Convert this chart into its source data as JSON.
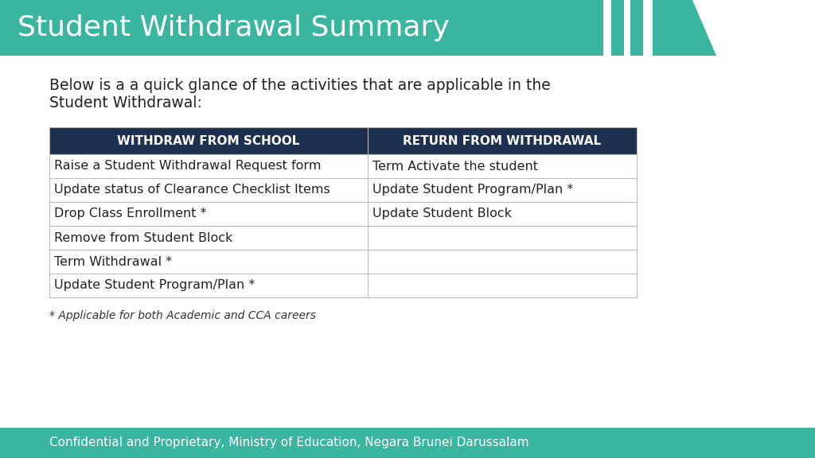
{
  "title": "Student Withdrawal Summary",
  "title_bg_color": "#3ab5a0",
  "title_text_color": "#ffffff",
  "title_fontsize": 26,
  "body_bg_color": "#ffffff",
  "subtitle_line1": "Below is a a quick glance of the activities that are applicable in the",
  "subtitle_line2": "Student Withdrawal:",
  "subtitle_fontsize": 13.5,
  "subtitle_color": "#222222",
  "table_header": [
    "WITHDRAW FROM SCHOOL",
    "RETURN FROM WITHDRAWAL"
  ],
  "table_header_bg": "#1e3050",
  "table_header_color": "#ffffff",
  "table_header_fontsize": 11,
  "table_rows": [
    [
      "Raise a Student Withdrawal Request form",
      "Term Activate the student"
    ],
    [
      "Update status of Clearance Checklist Items",
      "Update Student Program/Plan *"
    ],
    [
      "Drop Class Enrollment *",
      "Update Student Block"
    ],
    [
      "Remove from Student Block",
      ""
    ],
    [
      "Term Withdrawal *",
      ""
    ],
    [
      "Update Student Program/Plan *",
      ""
    ]
  ],
  "table_border_color": "#bbbbbb",
  "table_text_color": "#222222",
  "table_fontsize": 11.5,
  "footnote": "* Applicable for both Academic and CCA careers",
  "footnote_fontsize": 10,
  "footnote_color": "#333333",
  "footer_bg_color": "#3ab5a0",
  "footer_text": "Confidential and Proprietary, Ministry of Education, Negara Brunei Darussalam",
  "footer_fontsize": 11,
  "footer_text_color": "#ffffff",
  "accent_teal_color": "#3ab5a0",
  "accent_bar_gap_color": "#ffffff"
}
